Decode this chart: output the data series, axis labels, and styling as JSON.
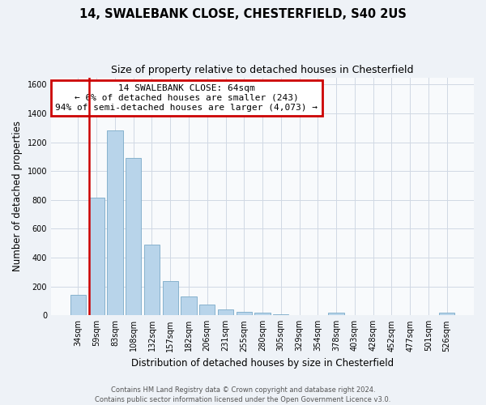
{
  "title1": "14, SWALEBANK CLOSE, CHESTERFIELD, S40 2US",
  "title2": "Size of property relative to detached houses in Chesterfield",
  "xlabel": "Distribution of detached houses by size in Chesterfield",
  "ylabel": "Number of detached properties",
  "bar_labels": [
    "34sqm",
    "59sqm",
    "83sqm",
    "108sqm",
    "132sqm",
    "157sqm",
    "182sqm",
    "206sqm",
    "231sqm",
    "255sqm",
    "280sqm",
    "305sqm",
    "329sqm",
    "354sqm",
    "378sqm",
    "403sqm",
    "428sqm",
    "452sqm",
    "477sqm",
    "501sqm",
    "526sqm"
  ],
  "bar_values": [
    140,
    815,
    1280,
    1090,
    490,
    238,
    130,
    72,
    42,
    25,
    18,
    8,
    0,
    0,
    16,
    0,
    0,
    0,
    0,
    0,
    16
  ],
  "bar_color": "#b8d4ea",
  "bar_edge_color": "#7aaac8",
  "annotation_title": "14 SWALEBANK CLOSE: 64sqm",
  "annotation_line1": "← 6% of detached houses are smaller (243)",
  "annotation_line2": "94% of semi-detached houses are larger (4,073) →",
  "annotation_box_color": "#ffffff",
  "annotation_box_edge": "#cc0000",
  "property_line_color": "#cc0000",
  "ylim": [
    0,
    1650
  ],
  "footer1": "Contains HM Land Registry data © Crown copyright and database right 2024.",
  "footer2": "Contains public sector information licensed under the Open Government Licence v3.0.",
  "bg_color": "#eef2f7",
  "plot_bg_color": "#f8fafc",
  "grid_color": "#d0d8e4"
}
